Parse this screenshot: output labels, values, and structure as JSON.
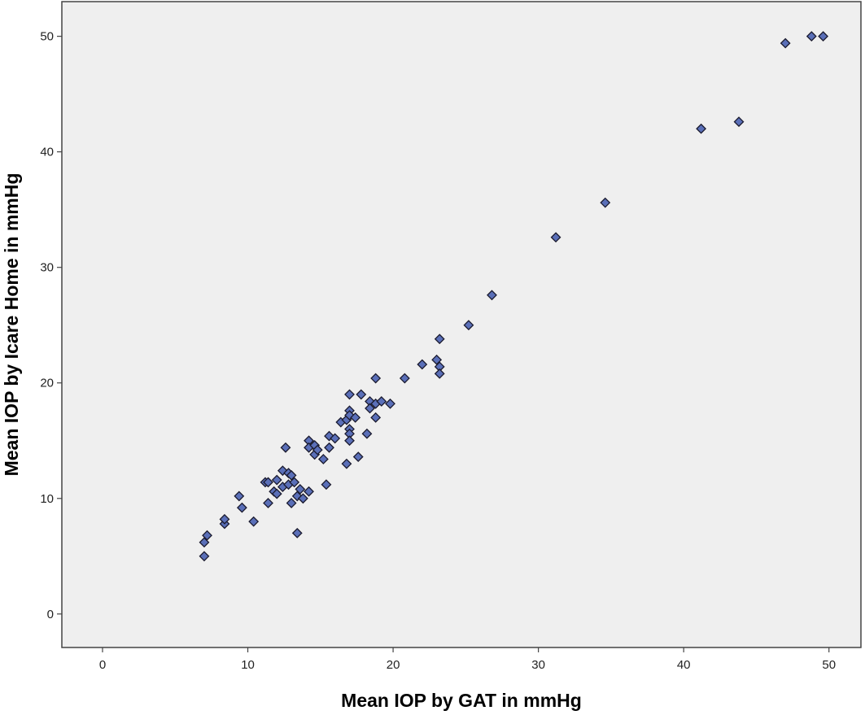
{
  "chart_data": {
    "type": "scatter",
    "title": "",
    "xlabel": "Mean IOP by GAT in mmHg",
    "ylabel": "Mean IOP by Icare Home in mmHg",
    "xlim": [
      -2.8,
      52.2
    ],
    "ylim": [
      -2.9,
      53.0
    ],
    "x_ticks": [
      0,
      10,
      20,
      30,
      40,
      50
    ],
    "y_ticks": [
      0,
      10,
      20,
      30,
      40,
      50
    ],
    "grid": false,
    "legend": "none",
    "colors": {
      "plot_background": "#efefef",
      "marker_fill": "#5a6fb8",
      "marker_stroke": "#1a1a2e",
      "frame": "#444444"
    },
    "series": [
      {
        "marker": "diamond",
        "points": [
          [
            7.0,
            5.0
          ],
          [
            7.0,
            6.2
          ],
          [
            7.2,
            6.8
          ],
          [
            8.4,
            7.8
          ],
          [
            8.4,
            8.2
          ],
          [
            9.4,
            10.2
          ],
          [
            9.6,
            9.2
          ],
          [
            10.4,
            8.0
          ],
          [
            11.2,
            11.4
          ],
          [
            11.4,
            11.4
          ],
          [
            11.4,
            9.6
          ],
          [
            11.8,
            10.6
          ],
          [
            12.0,
            10.4
          ],
          [
            12.0,
            11.6
          ],
          [
            12.4,
            12.4
          ],
          [
            12.4,
            11.0
          ],
          [
            12.6,
            14.4
          ],
          [
            12.8,
            11.2
          ],
          [
            12.8,
            12.2
          ],
          [
            13.0,
            9.6
          ],
          [
            13.0,
            12.0
          ],
          [
            13.2,
            11.4
          ],
          [
            13.4,
            10.2
          ],
          [
            13.4,
            7.0
          ],
          [
            13.6,
            10.8
          ],
          [
            13.8,
            10.0
          ],
          [
            14.2,
            10.6
          ],
          [
            14.2,
            15.0
          ],
          [
            14.2,
            14.4
          ],
          [
            14.6,
            14.6
          ],
          [
            14.6,
            13.8
          ],
          [
            14.8,
            14.2
          ],
          [
            15.2,
            13.4
          ],
          [
            15.4,
            11.2
          ],
          [
            15.6,
            15.4
          ],
          [
            15.6,
            14.4
          ],
          [
            16.0,
            15.2
          ],
          [
            16.4,
            16.6
          ],
          [
            16.8,
            16.8
          ],
          [
            16.8,
            13.0
          ],
          [
            17.0,
            19.0
          ],
          [
            17.0,
            17.6
          ],
          [
            17.0,
            17.2
          ],
          [
            17.0,
            16.0
          ],
          [
            17.0,
            15.6
          ],
          [
            17.0,
            15.0
          ],
          [
            17.4,
            17.0
          ],
          [
            17.6,
            13.6
          ],
          [
            17.8,
            19.0
          ],
          [
            18.2,
            15.6
          ],
          [
            18.4,
            18.4
          ],
          [
            18.4,
            17.8
          ],
          [
            18.8,
            20.4
          ],
          [
            18.8,
            18.2
          ],
          [
            18.8,
            17.0
          ],
          [
            19.2,
            18.4
          ],
          [
            19.8,
            18.2
          ],
          [
            20.8,
            20.4
          ],
          [
            22.0,
            21.6
          ],
          [
            23.0,
            22.0
          ],
          [
            23.2,
            21.4
          ],
          [
            23.2,
            20.8
          ],
          [
            23.2,
            23.8
          ],
          [
            25.2,
            25.0
          ],
          [
            26.8,
            27.6
          ],
          [
            31.2,
            32.6
          ],
          [
            34.6,
            35.6
          ],
          [
            41.2,
            42.0
          ],
          [
            43.8,
            42.6
          ],
          [
            47.0,
            49.4
          ],
          [
            48.8,
            50.0
          ],
          [
            49.6,
            50.0
          ]
        ]
      }
    ]
  }
}
